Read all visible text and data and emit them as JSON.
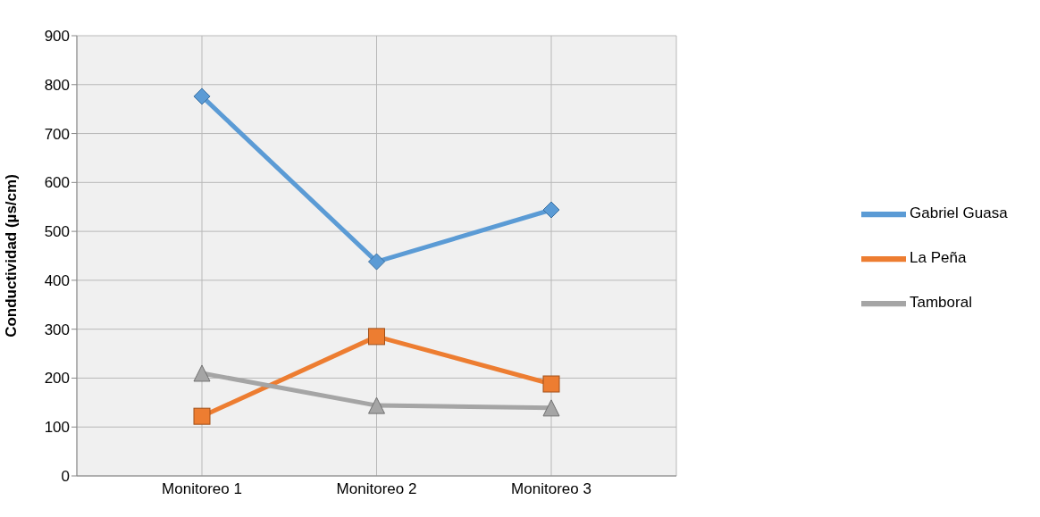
{
  "chart_data": {
    "type": "line",
    "ylabel": "Conductividad (µs/cm)",
    "categories": [
      "Monitoreo 1",
      "Monitoreo 2",
      "Monitoreo 3"
    ],
    "series": [
      {
        "name": "Gabriel Guasa",
        "color": "#5b9bd5",
        "values": [
          776,
          438,
          544
        ],
        "marker": "diamond"
      },
      {
        "name": "La Peña",
        "color": "#ed7d31",
        "values": [
          122,
          285,
          188
        ],
        "marker": "square"
      },
      {
        "name": "Tamboral",
        "color": "#a5a5a5",
        "values": [
          210,
          144,
          139
        ],
        "marker": "triangle"
      }
    ],
    "ylim": [
      0,
      900
    ],
    "yticks": [
      0,
      100,
      200,
      300,
      400,
      500,
      600,
      700,
      800,
      900
    ],
    "grid": true,
    "legend": "right"
  }
}
